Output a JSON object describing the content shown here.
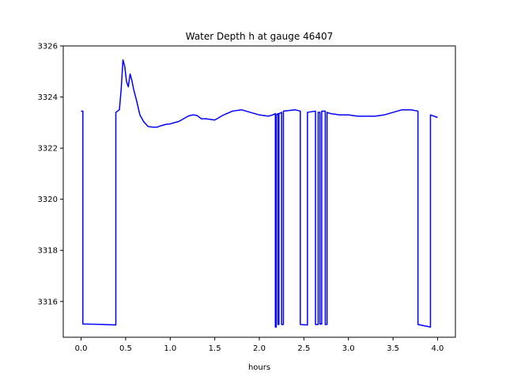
{
  "chart_data": {
    "type": "line",
    "title": "Water Depth h at gauge 46407",
    "xlabel": "hours",
    "ylabel": "",
    "xlim": [
      -0.2,
      4.2
    ],
    "ylim": [
      3314.6,
      3326
    ],
    "xticks": [
      0.0,
      0.5,
      1.0,
      1.5,
      2.0,
      2.5,
      3.0,
      3.5,
      4.0
    ],
    "xtick_labels": [
      "0.0",
      "0.5",
      "1.0",
      "1.5",
      "2.0",
      "2.5",
      "3.0",
      "3.5",
      "4.0"
    ],
    "yticks": [
      3316,
      3318,
      3320,
      3322,
      3324,
      3326
    ],
    "ytick_labels": [
      "3316",
      "3318",
      "3320",
      "3322",
      "3324",
      "3326"
    ],
    "grid": false,
    "legend": "none",
    "series": [
      {
        "color": "#0000ff",
        "x": [
          0.0,
          0.02,
          0.02,
          0.25,
          0.39,
          0.39,
          0.43,
          0.45,
          0.47,
          0.49,
          0.51,
          0.53,
          0.55,
          0.57,
          0.59,
          0.62,
          0.66,
          0.7,
          0.75,
          0.8,
          0.85,
          0.9,
          0.95,
          1.0,
          1.1,
          1.2,
          1.25,
          1.3,
          1.35,
          1.4,
          1.5,
          1.55,
          1.6,
          1.7,
          1.8,
          1.9,
          2.0,
          2.1,
          2.15,
          2.18,
          2.18,
          2.19,
          2.19,
          2.21,
          2.21,
          2.22,
          2.22,
          2.25,
          2.25,
          2.27,
          2.27,
          2.4,
          2.46,
          2.46,
          2.54,
          2.54,
          2.63,
          2.63,
          2.66,
          2.66,
          2.68,
          2.68,
          2.7,
          2.7,
          2.74,
          2.74,
          2.76,
          2.76,
          2.8,
          2.9,
          3.0,
          3.1,
          3.2,
          3.3,
          3.4,
          3.5,
          3.55,
          3.6,
          3.7,
          3.78,
          3.78,
          3.85,
          3.92,
          3.92,
          4.0
        ],
        "y": [
          3323.45,
          3323.45,
          3315.12,
          3315.1,
          3315.08,
          3323.4,
          3323.5,
          3324.3,
          3325.45,
          3325.2,
          3324.6,
          3324.4,
          3324.9,
          3324.65,
          3324.3,
          3323.9,
          3323.3,
          3323.05,
          3322.85,
          3322.82,
          3322.82,
          3322.88,
          3322.93,
          3322.95,
          3323.05,
          3323.25,
          3323.3,
          3323.28,
          3323.15,
          3323.15,
          3323.1,
          3323.2,
          3323.3,
          3323.45,
          3323.5,
          3323.4,
          3323.3,
          3323.25,
          3323.3,
          3323.35,
          3315.0,
          3315.0,
          3323.3,
          3323.35,
          3315.1,
          3315.1,
          3323.35,
          3323.4,
          3315.1,
          3315.1,
          3323.45,
          3323.5,
          3323.45,
          3315.1,
          3315.08,
          3323.4,
          3323.45,
          3315.1,
          3315.1,
          3323.4,
          3323.4,
          3315.12,
          3315.12,
          3323.45,
          3323.45,
          3315.1,
          3315.1,
          3323.4,
          3323.35,
          3323.3,
          3323.3,
          3323.25,
          3323.25,
          3323.25,
          3323.3,
          3323.4,
          3323.45,
          3323.5,
          3323.5,
          3323.45,
          3315.1,
          3315.05,
          3315.0,
          3323.3,
          3323.2
        ]
      }
    ]
  }
}
